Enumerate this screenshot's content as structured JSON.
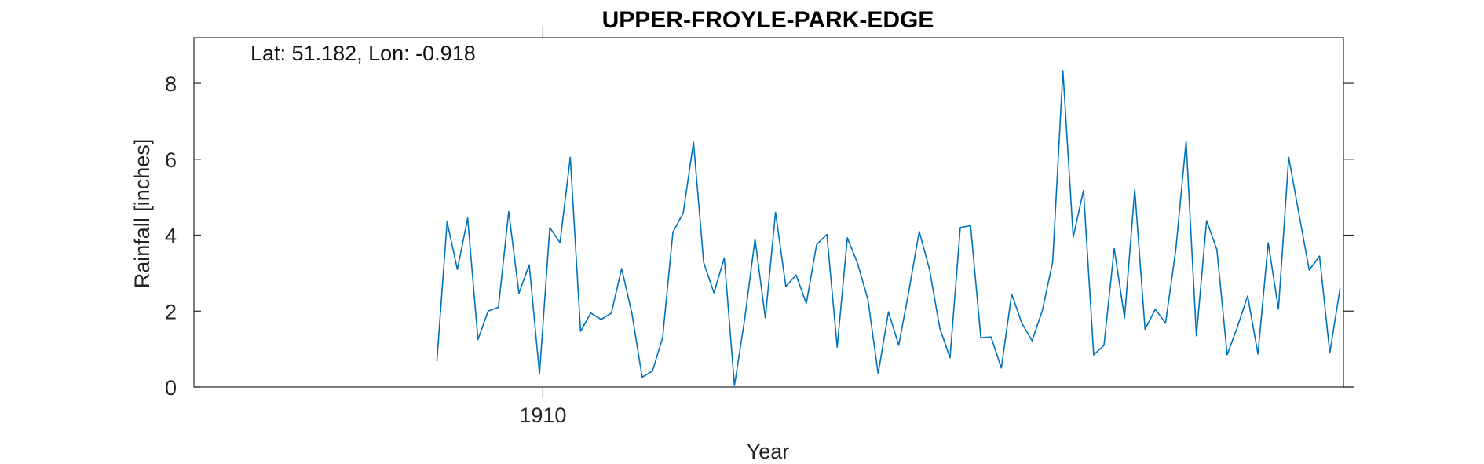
{
  "chart_data": {
    "type": "line",
    "title": "UPPER-FROYLE-PARK-EDGE",
    "annotation": "Lat: 51.182, Lon: -0.918",
    "xlabel": "Year",
    "ylabel": "Rainfall [inches]",
    "xlim": [
      1901.5,
      1929.5
    ],
    "ylim": [
      0,
      9.2
    ],
    "xticks": [
      1910
    ],
    "xtick_labels": [
      "1910"
    ],
    "yticks": [
      0,
      2,
      4,
      6,
      8
    ],
    "ytick_labels": [
      "0",
      "2",
      "4",
      "6",
      "8"
    ],
    "grid": false,
    "series_color": "#0072BD",
    "series": [
      {
        "x": [
          1907.417,
          1907.667,
          1907.917,
          1908.167,
          1908.417,
          1908.667,
          1908.917,
          1909.167,
          1909.417,
          1909.667,
          1909.917,
          1910.167,
          1910.417,
          1910.667,
          1910.917,
          1911.167,
          1911.417,
          1911.667,
          1911.917,
          1912.167,
          1912.417,
          1912.667,
          1912.917,
          1913.167,
          1913.417,
          1913.667,
          1913.917,
          1914.167,
          1914.417,
          1914.667,
          1914.917,
          1915.167,
          1915.417,
          1915.667,
          1915.917,
          1916.167,
          1916.417,
          1916.667,
          1916.917,
          1917.167,
          1917.417,
          1917.667,
          1917.917,
          1918.167,
          1918.417,
          1918.667,
          1918.917,
          1919.167,
          1919.417,
          1919.667,
          1919.917,
          1920.167,
          1920.417,
          1920.667,
          1920.917,
          1921.167,
          1921.417,
          1921.667,
          1921.917,
          1922.167,
          1922.417,
          1922.667,
          1922.917,
          1923.167,
          1923.417,
          1923.667,
          1923.917,
          1924.167,
          1924.417,
          1924.667,
          1924.917,
          1925.167,
          1925.417,
          1925.667,
          1925.917,
          1926.167,
          1926.417,
          1926.667,
          1926.917,
          1927.167,
          1927.417,
          1927.667,
          1927.917,
          1928.167,
          1928.417,
          1928.667,
          1928.917,
          1929.167,
          1929.417
        ],
        "y": [
          0.68,
          4.35,
          3.1,
          4.45,
          1.25,
          2.0,
          2.1,
          4.62,
          2.47,
          3.22,
          0.35,
          4.2,
          3.8,
          6.05,
          1.47,
          1.95,
          1.78,
          1.95,
          3.12,
          1.95,
          0.26,
          0.42,
          1.3,
          4.08,
          4.58,
          6.45,
          3.28,
          2.48,
          3.4,
          0.04,
          1.8,
          3.9,
          1.82,
          4.6,
          2.65,
          2.95,
          2.2,
          3.75,
          4.02,
          1.05,
          3.93,
          3.25,
          2.3,
          0.35,
          1.98,
          1.1,
          2.55,
          4.1,
          3.1,
          1.55,
          0.77,
          4.2,
          4.25,
          1.3,
          1.32,
          0.5,
          2.45,
          1.68,
          1.22,
          2.02,
          3.3,
          8.33,
          3.95,
          5.18,
          0.85,
          1.1,
          3.65,
          1.82,
          5.2,
          1.52,
          2.05,
          1.68,
          3.62,
          6.47,
          1.35,
          4.38,
          3.62,
          0.85,
          1.58,
          2.4,
          0.87,
          3.8,
          2.05,
          6.05,
          4.55,
          3.08,
          3.45,
          0.9,
          2.6
        ]
      }
    ]
  }
}
